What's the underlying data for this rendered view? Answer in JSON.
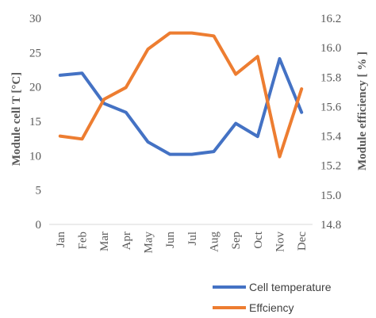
{
  "chart_data": {
    "type": "line",
    "categories": [
      "Jan",
      "Feb",
      "Mar",
      "Apr",
      "May",
      "Jun",
      "Jul",
      "Aug",
      "Sep",
      "Oct",
      "Nov",
      "Dec"
    ],
    "series": [
      {
        "name": "Cell temperature",
        "axis": "left",
        "color": "#4472C4",
        "values": [
          21.7,
          22.0,
          17.6,
          16.3,
          12.0,
          10.2,
          10.2,
          10.6,
          14.7,
          12.8,
          24.1,
          16.3
        ]
      },
      {
        "name": "Effciency",
        "axis": "right",
        "color": "#ED7D31",
        "values": [
          15.4,
          15.38,
          15.65,
          15.73,
          15.99,
          16.1,
          16.1,
          16.08,
          15.82,
          15.94,
          15.26,
          15.72
        ]
      }
    ],
    "ylabel_left": "Module cell T [°C]",
    "ylabel_right": "Module efficiency [ % ]",
    "ylim_left": [
      0,
      30
    ],
    "yticks_left": [
      "0",
      "5",
      "10",
      "15",
      "20",
      "25",
      "30"
    ],
    "ylim_right": [
      14.8,
      16.2
    ],
    "yticks_right": [
      "14.8",
      "15.0",
      "15.2",
      "15.4",
      "15.6",
      "15.8",
      "16.0",
      "16.2"
    ],
    "grid": false,
    "legend_position": "bottom-right"
  }
}
